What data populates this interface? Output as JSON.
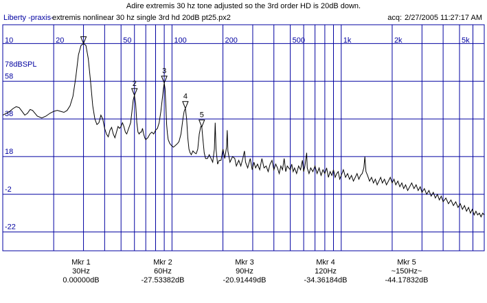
{
  "header": {
    "title": "Adire extremis 30 hz tone adjusted so the 3rd order HD is 20dB down.",
    "app_name": "Liberty -praxis-",
    "file_name": "extremis nonlinear 30 hz single 3rd hd 20dB pt25.px2",
    "acq_label": "acq:",
    "acq_value": "2/27/2005 11:27:17 AM"
  },
  "chart_data": {
    "type": "line",
    "title": "Adire extremis 30 hz tone adjusted so the 3rd order HD is 20dB down.",
    "xlabel": "",
    "ylabel": "",
    "x_scale": "log",
    "xlim": [
      10,
      7000
    ],
    "ylim": [
      -32,
      88
    ],
    "unit_label": "78dBSPL",
    "grid": true,
    "colors": {
      "frame": "#0000a0",
      "trace": "#000000",
      "text": "#0000a0"
    },
    "x_ticks": [
      {
        "value": 10,
        "label": "10"
      },
      {
        "value": 20,
        "label": "20"
      },
      {
        "value": 50,
        "label": "50"
      },
      {
        "value": 100,
        "label": "100"
      },
      {
        "value": 200,
        "label": "200"
      },
      {
        "value": 500,
        "label": "500"
      },
      {
        "value": 1000,
        "label": "1k"
      },
      {
        "value": 2000,
        "label": "2k"
      },
      {
        "value": 5000,
        "label": "5k"
      }
    ],
    "x_minor": [
      30,
      40,
      60,
      70,
      80,
      90,
      300,
      400,
      600,
      700,
      800,
      900,
      3000,
      4000,
      6000,
      7000
    ],
    "y_ticks": [
      {
        "value": 78,
        "label": ""
      },
      {
        "value": 58,
        "label": "58"
      },
      {
        "value": 38,
        "label": "38"
      },
      {
        "value": 18,
        "label": "18"
      },
      {
        "value": -2,
        "label": "-2"
      },
      {
        "value": -22,
        "label": "-22"
      }
    ],
    "series": [
      {
        "points": [
          [
            10,
            40
          ],
          [
            10.5,
            41
          ],
          [
            11,
            42
          ],
          [
            11.5,
            43.5
          ],
          [
            12,
            44.5
          ],
          [
            12.5,
            44
          ],
          [
            13,
            42
          ],
          [
            13.5,
            40
          ],
          [
            14,
            41
          ],
          [
            14.5,
            43
          ],
          [
            15,
            42.5
          ],
          [
            16,
            39.5
          ],
          [
            17,
            38.5
          ],
          [
            18,
            39.5
          ],
          [
            19,
            41
          ],
          [
            20,
            42
          ],
          [
            21,
            42.5
          ],
          [
            22,
            42
          ],
          [
            23,
            41.5
          ],
          [
            24,
            42.5
          ],
          [
            25,
            45
          ],
          [
            26,
            50
          ],
          [
            27,
            60
          ],
          [
            28,
            72
          ],
          [
            29,
            77
          ],
          [
            30,
            78
          ],
          [
            31,
            77
          ],
          [
            32,
            70
          ],
          [
            33,
            58
          ],
          [
            34,
            45
          ],
          [
            35,
            38
          ],
          [
            36,
            35
          ],
          [
            37,
            36
          ],
          [
            38,
            40
          ],
          [
            39,
            38
          ],
          [
            40,
            33
          ],
          [
            41,
            30
          ],
          [
            42,
            28.5
          ],
          [
            43,
            32
          ],
          [
            44,
            33.5
          ],
          [
            45,
            30
          ],
          [
            46,
            28
          ],
          [
            47,
            31
          ],
          [
            48,
            34
          ],
          [
            49,
            33
          ],
          [
            50,
            34
          ],
          [
            51,
            36
          ],
          [
            52,
            34
          ],
          [
            53,
            31
          ],
          [
            54,
            30
          ],
          [
            55,
            32
          ],
          [
            56,
            34
          ],
          [
            57,
            36
          ],
          [
            58,
            42
          ],
          [
            59,
            48
          ],
          [
            60,
            50.5
          ],
          [
            61,
            46
          ],
          [
            62,
            36
          ],
          [
            63,
            31
          ],
          [
            64,
            30
          ],
          [
            65,
            31
          ],
          [
            66,
            31
          ],
          [
            67,
            33
          ],
          [
            68,
            30
          ],
          [
            69,
            28
          ],
          [
            70,
            27
          ],
          [
            72,
            28
          ],
          [
            74,
            30
          ],
          [
            76,
            31
          ],
          [
            78,
            30
          ],
          [
            80,
            32
          ],
          [
            82,
            33
          ],
          [
            84,
            36
          ],
          [
            86,
            42
          ],
          [
            88,
            50
          ],
          [
            89,
            54
          ],
          [
            90,
            57.1
          ],
          [
            91,
            54
          ],
          [
            92,
            45
          ],
          [
            93,
            35
          ],
          [
            94,
            30
          ],
          [
            95,
            27
          ],
          [
            97,
            25
          ],
          [
            99,
            24
          ],
          [
            102,
            23
          ],
          [
            105,
            24
          ],
          [
            108,
            25
          ],
          [
            110,
            26
          ],
          [
            113,
            30
          ],
          [
            116,
            38
          ],
          [
            118,
            42
          ],
          [
            120,
            43.6
          ],
          [
            122,
            38
          ],
          [
            124,
            28
          ],
          [
            126,
            22
          ],
          [
            128,
            20
          ],
          [
            130,
            19
          ],
          [
            133,
            21
          ],
          [
            136,
            20
          ],
          [
            139,
            19.5
          ],
          [
            142,
            22
          ],
          [
            145,
            30
          ],
          [
            148,
            34
          ],
          [
            150,
            33.8
          ],
          [
            152,
            28
          ],
          [
            155,
            20
          ],
          [
            158,
            17
          ],
          [
            162,
            17
          ],
          [
            166,
            19
          ],
          [
            170,
            17
          ],
          [
            174,
            15
          ],
          [
            178,
            22
          ],
          [
            180,
            36
          ],
          [
            182,
            22
          ],
          [
            186,
            14
          ],
          [
            190,
            16
          ],
          [
            195,
            16
          ],
          [
            200,
            22
          ],
          [
            205,
            17
          ],
          [
            210,
            23
          ],
          [
            212,
            32
          ],
          [
            214,
            21
          ],
          [
            220,
            15
          ],
          [
            228,
            18
          ],
          [
            235,
            17
          ],
          [
            240,
            13
          ],
          [
            248,
            16
          ],
          [
            255,
            13
          ],
          [
            262,
            17
          ],
          [
            268,
            21
          ],
          [
            272,
            15
          ],
          [
            280,
            12
          ],
          [
            290,
            17
          ],
          [
            298,
            11
          ],
          [
            305,
            15
          ],
          [
            312,
            12
          ],
          [
            320,
            14
          ],
          [
            330,
            11
          ],
          [
            340,
            17
          ],
          [
            350,
            12
          ],
          [
            360,
            13
          ],
          [
            370,
            10
          ],
          [
            380,
            14
          ],
          [
            390,
            16
          ],
          [
            400,
            11
          ],
          [
            410,
            14
          ],
          [
            420,
            12
          ],
          [
            430,
            9
          ],
          [
            440,
            13
          ],
          [
            450,
            11
          ],
          [
            460,
            17
          ],
          [
            470,
            10
          ],
          [
            480,
            13
          ],
          [
            490,
            12
          ],
          [
            500,
            11
          ],
          [
            510,
            14
          ],
          [
            520,
            10
          ],
          [
            530,
            12
          ],
          [
            545,
            9
          ],
          [
            560,
            13
          ],
          [
            575,
            11
          ],
          [
            590,
            16
          ],
          [
            600,
            10
          ],
          [
            610,
            13
          ],
          [
            625,
            20
          ],
          [
            630,
            12
          ],
          [
            645,
            9
          ],
          [
            660,
            12
          ],
          [
            680,
            10
          ],
          [
            700,
            13
          ],
          [
            720,
            9
          ],
          [
            740,
            12
          ],
          [
            760,
            8
          ],
          [
            780,
            11
          ],
          [
            800,
            9
          ],
          [
            820,
            12
          ],
          [
            840,
            7
          ],
          [
            860,
            10
          ],
          [
            880,
            8
          ],
          [
            900,
            11
          ],
          [
            920,
            7
          ],
          [
            940,
            9
          ],
          [
            960,
            10
          ],
          [
            980,
            6
          ],
          [
            1000,
            8
          ],
          [
            1030,
            11
          ],
          [
            1060,
            7
          ],
          [
            1090,
            9
          ],
          [
            1120,
            6
          ],
          [
            1150,
            8
          ],
          [
            1180,
            5
          ],
          [
            1210,
            7
          ],
          [
            1240,
            9
          ],
          [
            1270,
            6
          ],
          [
            1300,
            8
          ],
          [
            1330,
            9
          ],
          [
            1360,
            12
          ],
          [
            1380,
            18
          ],
          [
            1400,
            10
          ],
          [
            1430,
            8
          ],
          [
            1470,
            5
          ],
          [
            1510,
            7
          ],
          [
            1550,
            4
          ],
          [
            1590,
            6
          ],
          [
            1630,
            3
          ],
          [
            1670,
            5
          ],
          [
            1710,
            7
          ],
          [
            1750,
            4
          ],
          [
            1800,
            6
          ],
          [
            1850,
            3
          ],
          [
            1900,
            5
          ],
          [
            1950,
            7
          ],
          [
            2000,
            4
          ],
          [
            2050,
            6
          ],
          [
            2100,
            3
          ],
          [
            2160,
            5
          ],
          [
            2220,
            2
          ],
          [
            2280,
            4
          ],
          [
            2340,
            1
          ],
          [
            2400,
            3
          ],
          [
            2470,
            0
          ],
          [
            2540,
            2
          ],
          [
            2610,
            4
          ],
          [
            2690,
            1
          ],
          [
            2770,
            3
          ],
          [
            2850,
            0
          ],
          [
            2930,
            2
          ],
          [
            3000,
            -1
          ],
          [
            3100,
            1
          ],
          [
            3200,
            -2
          ],
          [
            3300,
            0
          ],
          [
            3400,
            -3
          ],
          [
            3500,
            -1
          ],
          [
            3600,
            -4
          ],
          [
            3700,
            -2
          ],
          [
            3800,
            -5
          ],
          [
            3900,
            -3
          ],
          [
            4000,
            -6
          ],
          [
            4150,
            -4
          ],
          [
            4300,
            -7
          ],
          [
            4450,
            -5
          ],
          [
            4600,
            -8
          ],
          [
            4750,
            -6
          ],
          [
            4900,
            -9
          ],
          [
            5050,
            -7
          ],
          [
            5200,
            -10
          ],
          [
            5350,
            -8
          ],
          [
            5500,
            -11
          ],
          [
            5650,
            -9
          ],
          [
            5800,
            -12
          ],
          [
            5950,
            -10
          ],
          [
            6100,
            -13
          ],
          [
            6250,
            -11
          ],
          [
            6400,
            -13
          ],
          [
            6550,
            -12
          ],
          [
            6700,
            -14
          ],
          [
            6850,
            -12
          ],
          [
            7000,
            -13
          ]
        ]
      }
    ],
    "markers": [
      {
        "label": "",
        "freq": 30,
        "level": 78
      },
      {
        "label": "2",
        "freq": 60,
        "level": 50.5
      },
      {
        "label": "3",
        "freq": 90,
        "level": 57.1
      },
      {
        "label": "4",
        "freq": 120,
        "level": 43.6
      },
      {
        "label": "5",
        "freq": 150,
        "level": 33.8
      }
    ]
  },
  "markers_table": [
    {
      "name": "Mkr 1",
      "freq": "30Hz",
      "level": "0.00000dB"
    },
    {
      "name": "Mkr 2",
      "freq": "60Hz",
      "level": "-27.53382dB"
    },
    {
      "name": "Mkr 3",
      "freq": "90Hz",
      "level": "-20.91449dB"
    },
    {
      "name": "Mkr 4",
      "freq": "120Hz",
      "level": "-34.36184dB"
    },
    {
      "name": "Mkr 5",
      "freq": "~150Hz~",
      "level": "-44.17832dB"
    }
  ]
}
